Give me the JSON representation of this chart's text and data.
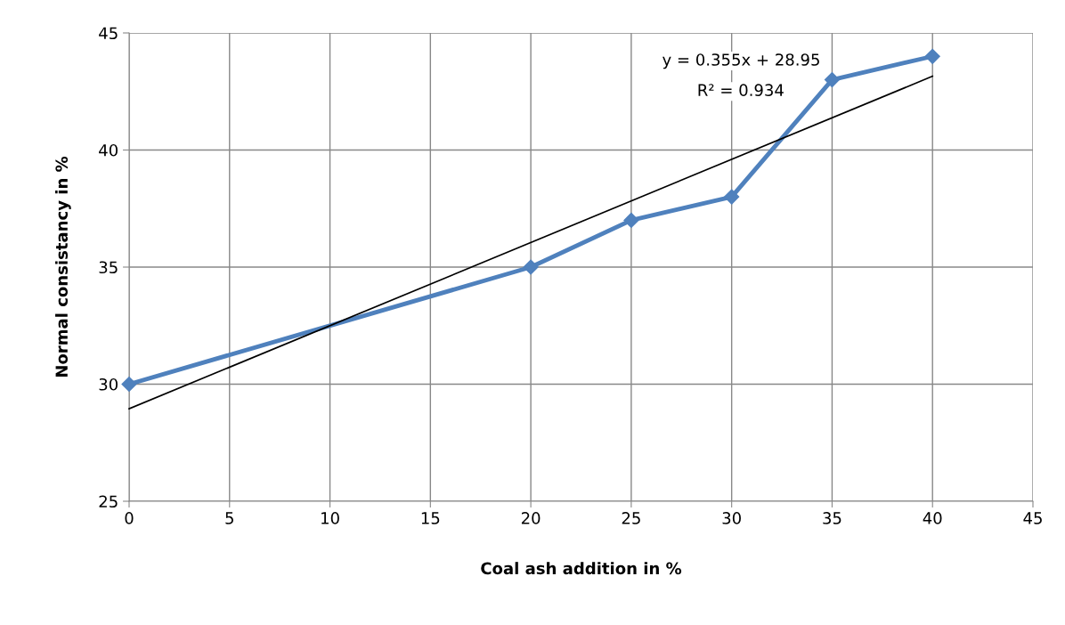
{
  "chart_data": {
    "type": "line",
    "xlabel": "Coal ash addition in %",
    "ylabel": "Normal consistancy in %",
    "x": [
      0,
      20,
      25,
      30,
      35,
      40
    ],
    "series": [
      {
        "color": "#4f81bd",
        "values": [
          30,
          35,
          37,
          38,
          43,
          44
        ],
        "marker": "diamond",
        "line_style": "solid"
      },
      {
        "type": "line",
        "color": "#000000",
        "x": [
          0,
          40
        ],
        "values": [
          28.95,
          43.15
        ],
        "marker": "none",
        "line_style": "solid"
      }
    ],
    "xlim": [
      0,
      45
    ],
    "xticks": [
      0,
      5,
      10,
      15,
      20,
      25,
      30,
      35,
      40,
      45
    ],
    "ylim": [
      25,
      45
    ],
    "yticks": [
      25,
      30,
      35,
      40,
      45
    ],
    "grid": true,
    "legend": false,
    "annotations": [
      "y = 0.355x + 28.95",
      "R² = 0.934"
    ]
  }
}
